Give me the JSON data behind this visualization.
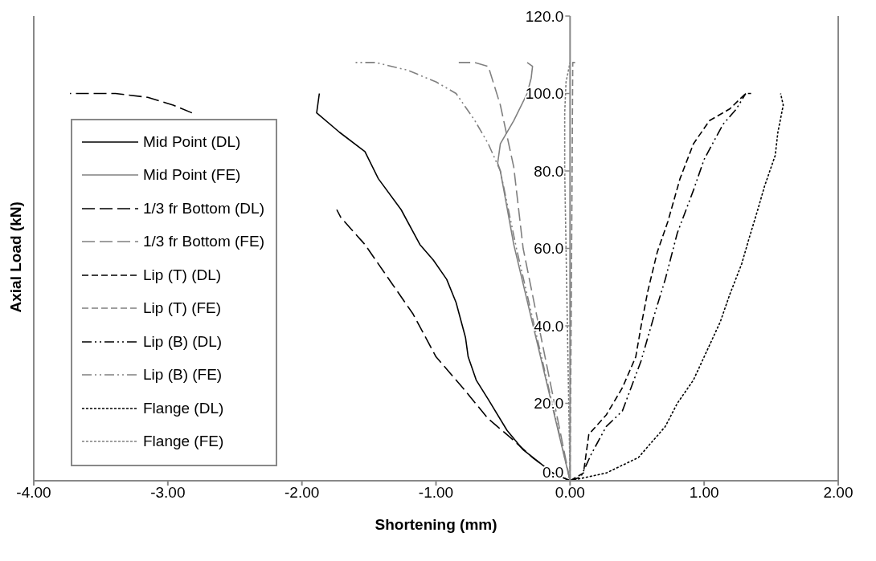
{
  "chart_data": {
    "type": "line",
    "xlabel": "Shortening (mm)",
    "ylabel": "Axial Load (kN)",
    "xlim": [
      -4,
      2
    ],
    "xticks": [
      {
        "value": -4,
        "label": "-4.00"
      },
      {
        "value": -3,
        "label": "-3.00"
      },
      {
        "value": -2,
        "label": "-2.00"
      },
      {
        "value": -1,
        "label": "-1.00"
      },
      {
        "value": 0,
        "label": "0.00"
      },
      {
        "value": 1,
        "label": "1.00"
      },
      {
        "value": 2,
        "label": "2.00"
      }
    ],
    "ylim": [
      0,
      120
    ],
    "yticks": [
      {
        "value": 0,
        "label": "0.0"
      },
      {
        "value": 20,
        "label": "20.0"
      },
      {
        "value": 40,
        "label": "40.0"
      },
      {
        "value": 60,
        "label": "60.0"
      },
      {
        "value": 80,
        "label": "80.0"
      },
      {
        "value": 100,
        "label": "100.0"
      },
      {
        "value": 120,
        "label": "120.0"
      }
    ],
    "legend": "left",
    "marker": "none",
    "series": [
      {
        "name": "Mid Point (DL)",
        "color": "#000000",
        "line_style": "solid",
        "x": [
          0,
          -0.13,
          -0.35,
          -0.47,
          -0.61,
          -0.7,
          -0.76,
          -0.78,
          -0.85,
          -0.92,
          -1.02,
          -1.12,
          -1.26,
          -1.43,
          -1.53,
          -1.72,
          -1.89,
          -1.87
        ],
        "values": [
          0,
          2,
          8,
          13,
          21,
          26,
          32,
          37,
          46,
          52,
          57,
          61,
          70,
          78,
          85,
          90,
          95,
          100
        ]
      },
      {
        "name": "Mid Point (FE)",
        "color": "#808080",
        "line_style": "solid",
        "x": [
          0,
          -0.42,
          -0.52,
          -0.54,
          -0.52,
          -0.42,
          -0.32,
          -0.29,
          -0.28,
          -0.32
        ],
        "values": [
          0,
          61,
          80,
          82,
          87,
          93,
          100,
          104,
          107,
          108
        ]
      },
      {
        "name": "1/3 fr Bottom (DL)",
        "color": "#000000",
        "line_style": "longdash",
        "x": [
          0,
          -0.13,
          -0.28,
          -0.44,
          -0.61,
          -0.8,
          -1,
          -1.17,
          -1.33,
          -1.53,
          -1.71,
          -1.74,
          -2.3,
          -2.82,
          -2.96,
          -3.15,
          -3.39,
          -3.73
        ],
        "values": [
          0,
          2,
          6,
          11,
          16,
          24,
          32,
          43,
          51,
          61,
          68,
          70,
          null,
          95,
          97,
          99,
          100,
          100
        ]
      },
      {
        "name": "1/3 fr Bottom (FE)",
        "color": "#808080",
        "line_style": "longdash",
        "x": [
          0,
          -0.35,
          -0.42,
          -0.47,
          -0.52,
          -0.61,
          -0.71,
          -0.83
        ],
        "values": [
          0,
          60,
          81,
          89,
          97,
          107,
          108,
          108
        ]
      },
      {
        "name": "Lip (T) (DL)",
        "color": "#000000",
        "line_style": "dashed",
        "x": [
          0,
          0.1,
          0.14,
          0.27,
          0.39,
          0.49,
          0.53,
          0.58,
          0.65,
          0.73,
          0.82,
          0.92,
          1.04,
          1.19,
          1.31,
          1.35
        ],
        "values": [
          0,
          2,
          12,
          17,
          24,
          32,
          40,
          49,
          59,
          67,
          78,
          87,
          93,
          96,
          100,
          100
        ]
      },
      {
        "name": "Lip (T) (FE)",
        "color": "#808080",
        "line_style": "dashed",
        "x": [
          0,
          0.01,
          0.02,
          0.05
        ],
        "values": [
          0,
          50,
          108,
          108
        ]
      },
      {
        "name": "Lip (B) (DL)",
        "color": "#000000",
        "line_style": "dashdot",
        "x": [
          0,
          0.08,
          0.16,
          0.27,
          0.39,
          0.53,
          0.63,
          0.71,
          0.8,
          0.92,
          1,
          1.14,
          1.24,
          1.31
        ],
        "values": [
          0,
          1,
          7,
          14,
          18,
          31,
          43,
          52,
          64,
          75,
          83,
          92,
          96,
          100
        ]
      },
      {
        "name": "Lip (B) (FE)",
        "color": "#808080",
        "line_style": "dashdot",
        "x": [
          0,
          -0.4,
          -0.52,
          -0.61,
          -0.71,
          -0.85,
          -1,
          -1.21,
          -1.45,
          -1.62
        ],
        "values": [
          0,
          60,
          80,
          87,
          93,
          100,
          103,
          106,
          108,
          108
        ]
      },
      {
        "name": "Flange (DL)",
        "color": "#000000",
        "line_style": "dotted",
        "x": [
          0,
          0.27,
          0.51,
          0.71,
          0.8,
          0.92,
          1,
          1.12,
          1.19,
          1.28,
          1.33,
          1.4,
          1.45,
          1.53,
          1.55,
          1.59,
          1.57
        ],
        "values": [
          0,
          2,
          6,
          14,
          20,
          26,
          32,
          41,
          48,
          56,
          62,
          70,
          76,
          84,
          90,
          97,
          100
        ]
      },
      {
        "name": "Flange (FE)",
        "color": "#808080",
        "line_style": "dotted",
        "x": [
          0,
          -0.02,
          -0.04,
          -0.04,
          -0.03,
          0
        ],
        "values": [
          0,
          40,
          80,
          95,
          103,
          108
        ]
      }
    ]
  }
}
